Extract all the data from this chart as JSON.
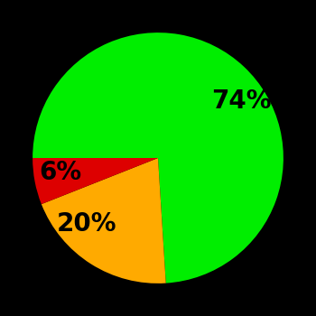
{
  "slices": [
    74,
    20,
    6
  ],
  "labels": [
    "74%",
    "20%",
    "6%"
  ],
  "colors": [
    "#00ee00",
    "#ffaa00",
    "#dd0000"
  ],
  "startangle": 180,
  "counterclock": false,
  "background_color": "#000000",
  "label_fontsize": 20,
  "label_fontweight": "bold",
  "labeldistance": 0.62
}
